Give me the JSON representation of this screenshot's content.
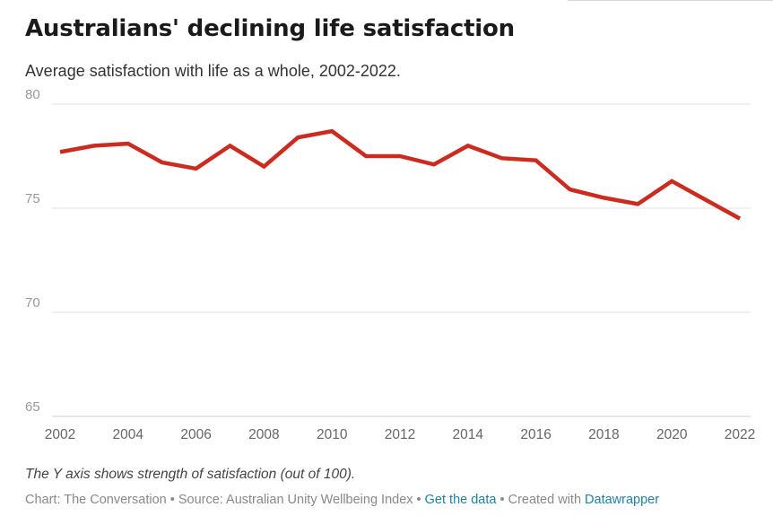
{
  "chart_data": {
    "type": "line",
    "title": "Australians' declining life satisfaction",
    "subtitle": "Average satisfaction with life as a whole, 2002-2022.",
    "xlabel": "",
    "ylabel": "",
    "x": [
      2002,
      2003,
      2004,
      2005,
      2006,
      2007,
      2008,
      2009,
      2010,
      2011,
      2012,
      2013,
      2014,
      2015,
      2016,
      2017,
      2018,
      2019,
      2020,
      2021,
      2022
    ],
    "series": [
      {
        "values": [
          77.7,
          78.0,
          78.1,
          77.2,
          76.9,
          78.0,
          77.0,
          78.4,
          78.7,
          77.5,
          77.5,
          77.1,
          78.0,
          77.4,
          77.3,
          75.9,
          75.5,
          75.2,
          76.3,
          75.4,
          74.5
        ],
        "color": "#cc2b20"
      }
    ],
    "xticks": [
      "2002",
      "2004",
      "2006",
      "2008",
      "2010",
      "2012",
      "2014",
      "2016",
      "2018",
      "2020",
      "2022"
    ],
    "yticks": [
      "80",
      "75",
      "70",
      "65"
    ],
    "ylim": [
      65,
      80
    ],
    "xlim": [
      2002,
      2022
    ],
    "grid": true,
    "legend": "none"
  },
  "footer": {
    "note": "The Y axis shows strength of satisfaction (out of 100).",
    "credit_prefix": "Chart: The Conversation • Source: Australian Unity Wellbeing Index • ",
    "get_data_link": "Get the data",
    "created_with": " • Created with ",
    "datawrapper_link": "Datawrapper"
  },
  "colors": {
    "line": "#cc2b20",
    "grid": "#e0e0e0",
    "tick_label": "#999999",
    "link": "#1d81a2"
  }
}
